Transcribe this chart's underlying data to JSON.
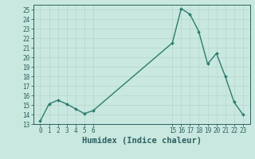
{
  "x": [
    0,
    1,
    2,
    3,
    4,
    5,
    6,
    15,
    16,
    17,
    18,
    19,
    20,
    21,
    22,
    23
  ],
  "y": [
    13.3,
    15.1,
    15.5,
    15.1,
    14.6,
    14.1,
    14.4,
    21.5,
    25.1,
    24.5,
    22.7,
    19.3,
    20.4,
    18.0,
    15.3,
    14.0
  ],
  "line_color": "#2e7d6e",
  "marker": "D",
  "marker_size": 2.0,
  "bg_color": "#c8e8e0",
  "grid_color": "#b8d8d0",
  "xlabel": "Humidex (Indice chaleur)",
  "ylabel": "",
  "ylim": [
    13,
    25.5
  ],
  "yticks": [
    13,
    14,
    15,
    16,
    17,
    18,
    19,
    20,
    21,
    22,
    23,
    24,
    25
  ],
  "xticks": [
    0,
    1,
    2,
    3,
    4,
    5,
    6,
    15,
    16,
    17,
    18,
    19,
    20,
    21,
    22,
    23
  ],
  "tick_color": "#2e6060",
  "tick_fontsize": 5.5,
  "xlabel_fontsize": 7.5,
  "line_width": 1.0,
  "spine_color": "#2e6060"
}
